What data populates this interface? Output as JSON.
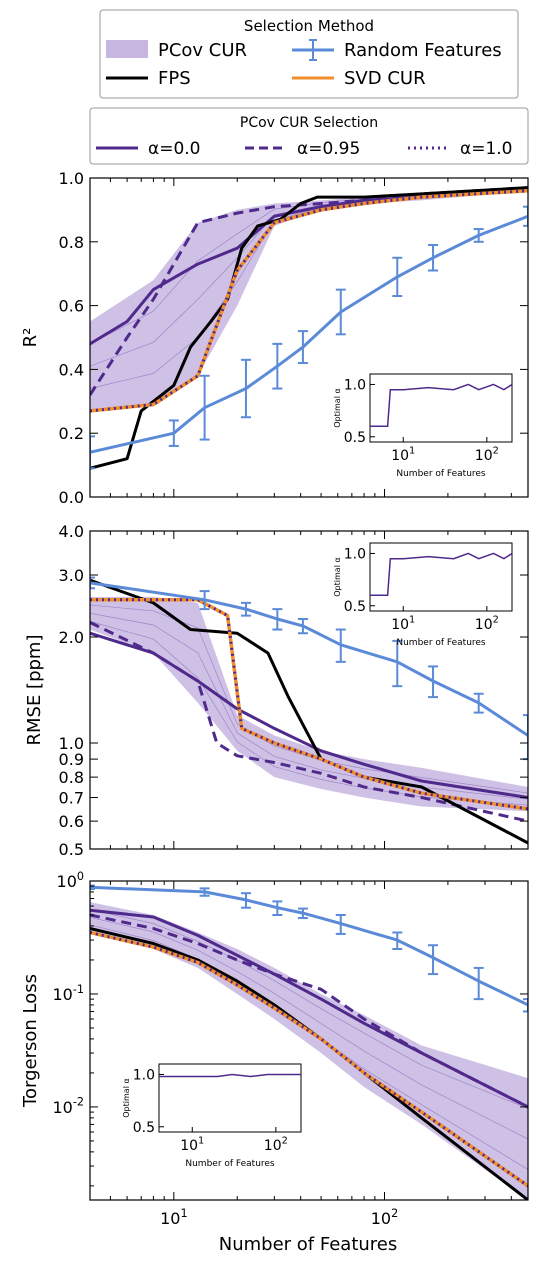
{
  "colors": {
    "pcov_fill": "#c7b6e0",
    "pcov_line": "#4f2a8c",
    "pcov_thin": "#8a6cc0",
    "fps": "#000000",
    "random": "#5b8ad8",
    "svd": "#f28e2b"
  },
  "legend_top": {
    "title": "Selection Method",
    "items": [
      {
        "label": "PCov CUR",
        "style": "patch"
      },
      {
        "label": "Random Features",
        "style": "errorbar"
      },
      {
        "label": "FPS",
        "style": "line"
      },
      {
        "label": "SVD CUR",
        "style": "line"
      }
    ]
  },
  "legend_second": {
    "title": "PCov CUR Selection",
    "items": [
      {
        "label": "α=0.0",
        "style": "solid"
      },
      {
        "label": "α=0.95",
        "style": "dashed"
      },
      {
        "label": "α=1.0",
        "style": "dotted"
      }
    ]
  },
  "shared_xlabel": "Number of Features",
  "x_ticks": [
    "10^1",
    "10^2"
  ],
  "chart_data": [
    {
      "type": "line",
      "ylabel": "R²",
      "xscale": "log",
      "xlim": [
        4,
        480
      ],
      "ylim": [
        0,
        1.0
      ],
      "ytick_labels": [
        "0.0",
        "0.2",
        "0.4",
        "0.6",
        "0.8",
        "1.0"
      ],
      "band": {
        "name": "PCov CUR",
        "x": [
          4,
          8,
          13,
          20,
          30,
          50,
          80,
          150,
          480
        ],
        "lower": [
          0.27,
          0.29,
          0.38,
          0.6,
          0.85,
          0.9,
          0.92,
          0.93,
          0.96
        ],
        "upper": [
          0.55,
          0.68,
          0.86,
          0.9,
          0.92,
          0.93,
          0.94,
          0.95,
          0.97
        ]
      },
      "series": [
        {
          "name": "α=0.0",
          "x": [
            4,
            6,
            8,
            13,
            20,
            30,
            50,
            80,
            150,
            480
          ],
          "y": [
            0.48,
            0.55,
            0.65,
            0.73,
            0.78,
            0.88,
            0.91,
            0.93,
            0.94,
            0.96
          ]
        },
        {
          "name": "α=0.95",
          "x": [
            4,
            6,
            8,
            13,
            20,
            30,
            50,
            80,
            150,
            480
          ],
          "y": [
            0.32,
            0.5,
            0.62,
            0.86,
            0.89,
            0.91,
            0.92,
            0.93,
            0.95,
            0.97
          ]
        },
        {
          "name": "α=1.0",
          "x": [
            4,
            8,
            13,
            20,
            30,
            50,
            80,
            150,
            480
          ],
          "y": [
            0.27,
            0.29,
            0.38,
            0.71,
            0.86,
            0.9,
            0.92,
            0.94,
            0.96
          ]
        },
        {
          "name": "FPS",
          "x": [
            4,
            6,
            7,
            10,
            12,
            15,
            18,
            21,
            25,
            32,
            40,
            48,
            80,
            150,
            480
          ],
          "y": [
            0.09,
            0.12,
            0.27,
            0.35,
            0.47,
            0.55,
            0.62,
            0.78,
            0.85,
            0.87,
            0.92,
            0.94,
            0.94,
            0.95,
            0.97
          ]
        },
        {
          "name": "SVD CUR",
          "x": [
            4,
            8,
            13,
            20,
            30,
            50,
            80,
            150,
            480
          ],
          "y": [
            0.27,
            0.29,
            0.38,
            0.71,
            0.86,
            0.9,
            0.92,
            0.94,
            0.96
          ]
        },
        {
          "name": "Random Features",
          "x": [
            4,
            10,
            14,
            22,
            31,
            41,
            62,
            115,
            170,
            280,
            480
          ],
          "y": [
            0.14,
            0.2,
            0.28,
            0.34,
            0.41,
            0.47,
            0.58,
            0.69,
            0.75,
            0.82,
            0.88
          ],
          "err": [
            0.05,
            0.04,
            0.1,
            0.09,
            0.07,
            0.05,
            0.07,
            0.06,
            0.04,
            0.02,
            0.03
          ]
        }
      ],
      "inset": {
        "ylabel": "Optimal α",
        "xlabel": "Number of Features",
        "position": "lower-right",
        "xlim": [
          4,
          200
        ],
        "ylim": [
          0.45,
          1.1
        ],
        "yticks": [
          "0.5",
          "1.0"
        ],
        "xticks": [
          "10^1",
          "10^2"
        ],
        "x": [
          4,
          6.5,
          7,
          10,
          20,
          40,
          60,
          80,
          120,
          160,
          200
        ],
        "y": [
          0.6,
          0.6,
          0.95,
          0.95,
          0.97,
          0.95,
          1.0,
          0.95,
          1.0,
          0.95,
          1.0
        ]
      }
    },
    {
      "type": "line",
      "ylabel": "RMSE [ppm]",
      "xscale": "log",
      "yscale": "log",
      "xlim": [
        4,
        480
      ],
      "ylim": [
        0.5,
        4.0
      ],
      "ytick_labels": [
        "0.5",
        "0.6",
        "0.7",
        "0.8",
        "0.9",
        "1.0",
        "2.0",
        "3.0",
        "4.0"
      ],
      "band": {
        "name": "PCov CUR",
        "x": [
          4,
          8,
          13,
          20,
          30,
          50,
          80,
          150,
          480
        ],
        "lower": [
          2.1,
          1.8,
          1.3,
          0.95,
          0.8,
          0.74,
          0.7,
          0.66,
          0.64
        ],
        "upper": [
          2.6,
          2.6,
          2.5,
          1.2,
          1.05,
          0.95,
          0.9,
          0.85,
          0.75
        ]
      },
      "series": [
        {
          "name": "α=0.0",
          "x": [
            4,
            8,
            13,
            20,
            30,
            50,
            80,
            150,
            480
          ],
          "y": [
            2.05,
            1.8,
            1.5,
            1.25,
            1.1,
            0.95,
            0.87,
            0.78,
            0.7
          ]
        },
        {
          "name": "α=0.95",
          "x": [
            4,
            8,
            13,
            16,
            20,
            30,
            50,
            80,
            150,
            480
          ],
          "y": [
            2.2,
            1.8,
            1.5,
            1.0,
            0.92,
            0.88,
            0.82,
            0.75,
            0.7,
            0.6
          ]
        },
        {
          "name": "α=1.0",
          "x": [
            4,
            13,
            18,
            21,
            30,
            50,
            80,
            150,
            480
          ],
          "y": [
            2.55,
            2.55,
            2.3,
            1.1,
            1.0,
            0.9,
            0.8,
            0.72,
            0.65
          ]
        },
        {
          "name": "FPS",
          "x": [
            4,
            8,
            12,
            20,
            28,
            35,
            50,
            80,
            150,
            480
          ],
          "y": [
            2.9,
            2.5,
            2.1,
            2.05,
            1.8,
            1.35,
            0.9,
            0.8,
            0.75,
            0.52
          ]
        },
        {
          "name": "SVD CUR",
          "x": [
            4,
            13,
            18,
            21,
            30,
            50,
            80,
            150,
            480
          ],
          "y": [
            2.55,
            2.55,
            2.3,
            1.1,
            1.0,
            0.9,
            0.8,
            0.72,
            0.65
          ]
        },
        {
          "name": "Random Features",
          "x": [
            4,
            14,
            22,
            31,
            41,
            62,
            115,
            170,
            280,
            480
          ],
          "y": [
            2.85,
            2.55,
            2.4,
            2.25,
            2.15,
            1.9,
            1.7,
            1.5,
            1.3,
            1.05
          ],
          "err": [
            0.1,
            0.15,
            0.1,
            0.15,
            0.1,
            0.2,
            0.25,
            0.15,
            0.08,
            0.15
          ]
        }
      ],
      "inset": {
        "ylabel": "Optimal α",
        "xlabel": "Number of Features",
        "position": "upper-right",
        "xlim": [
          4,
          200
        ],
        "ylim": [
          0.45,
          1.1
        ],
        "yticks": [
          "0.5",
          "1.0"
        ],
        "xticks": [
          "10^1",
          "10^2"
        ],
        "x": [
          4,
          6.5,
          7,
          10,
          20,
          40,
          60,
          80,
          120,
          160,
          200
        ],
        "y": [
          0.6,
          0.6,
          0.95,
          0.95,
          0.97,
          0.95,
          1.0,
          0.95,
          1.0,
          0.95,
          1.0
        ]
      }
    },
    {
      "type": "line",
      "ylabel": "Torgerson Loss",
      "xscale": "log",
      "yscale": "log",
      "xlim": [
        4,
        480
      ],
      "ylim": [
        0.0015,
        1.0
      ],
      "ytick_labels": [
        "10^-2",
        "10^-1",
        "10^0"
      ],
      "band": {
        "name": "PCov CUR",
        "x": [
          4,
          8,
          13,
          20,
          30,
          50,
          80,
          150,
          480
        ],
        "lower": [
          0.35,
          0.25,
          0.17,
          0.1,
          0.06,
          0.03,
          0.015,
          0.007,
          0.0015
        ],
        "upper": [
          0.65,
          0.5,
          0.35,
          0.25,
          0.17,
          0.1,
          0.065,
          0.035,
          0.018
        ]
      },
      "series": [
        {
          "name": "α=0.0",
          "x": [
            4,
            8,
            13,
            20,
            30,
            50,
            80,
            150,
            480
          ],
          "y": [
            0.55,
            0.48,
            0.33,
            0.22,
            0.15,
            0.09,
            0.055,
            0.03,
            0.01
          ]
        },
        {
          "name": "α=0.95",
          "x": [
            4,
            8,
            13,
            20,
            30,
            50,
            80,
            150,
            480
          ],
          "y": [
            0.5,
            0.38,
            0.28,
            0.2,
            0.15,
            0.11,
            0.06,
            0.03,
            0.01
          ]
        },
        {
          "name": "α=1.0",
          "x": [
            4,
            8,
            13,
            20,
            30,
            50,
            80,
            150,
            480
          ],
          "y": [
            0.35,
            0.26,
            0.19,
            0.12,
            0.075,
            0.04,
            0.02,
            0.009,
            0.002
          ]
        },
        {
          "name": "FPS",
          "x": [
            4,
            8,
            13,
            20,
            30,
            50,
            80,
            150,
            480
          ],
          "y": [
            0.38,
            0.28,
            0.2,
            0.13,
            0.08,
            0.04,
            0.02,
            0.008,
            0.0015
          ]
        },
        {
          "name": "SVD CUR",
          "x": [
            4,
            8,
            13,
            20,
            30,
            50,
            80,
            150,
            480
          ],
          "y": [
            0.35,
            0.26,
            0.19,
            0.12,
            0.075,
            0.04,
            0.02,
            0.009,
            0.002
          ]
        },
        {
          "name": "Random Features",
          "x": [
            4,
            14,
            22,
            31,
            41,
            62,
            115,
            170,
            280,
            480
          ],
          "y": [
            0.88,
            0.8,
            0.68,
            0.58,
            0.52,
            0.42,
            0.3,
            0.21,
            0.13,
            0.08
          ],
          "err": [
            0.03,
            0.06,
            0.1,
            0.08,
            0.05,
            0.08,
            0.05,
            0.06,
            0.04,
            0.01
          ]
        }
      ],
      "inset": {
        "ylabel": "Optimal α",
        "xlabel": "Number of Features",
        "position": "lower-left",
        "xlim": [
          4,
          200
        ],
        "ylim": [
          0.45,
          1.1
        ],
        "yticks": [
          "0.5",
          "1.0"
        ],
        "xticks": [
          "10^1",
          "10^2"
        ],
        "x": [
          4,
          20,
          30,
          50,
          80,
          200
        ],
        "y": [
          0.98,
          0.98,
          1.0,
          0.98,
          1.0,
          1.0
        ]
      }
    }
  ]
}
